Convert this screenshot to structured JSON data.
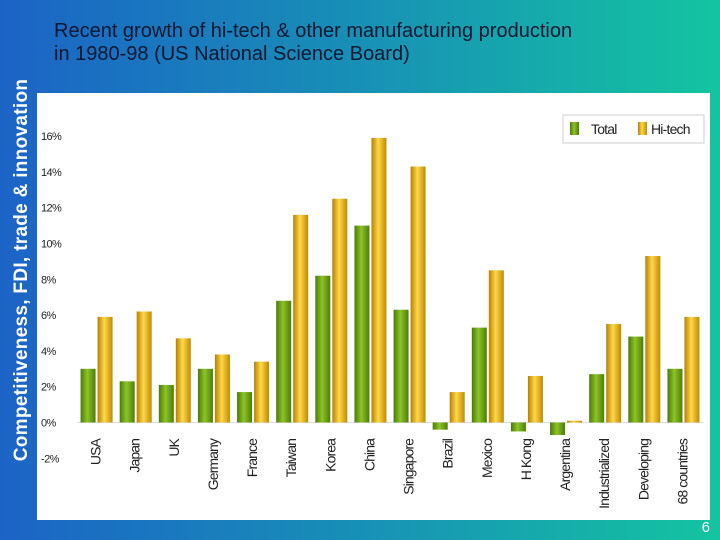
{
  "sidebar": {
    "text": "Competitiveness, FDI, trade & innovation"
  },
  "slide": {
    "title_line1": "Recent growth of hi-tech & other manufacturing production",
    "title_line2": "in 1980-98 (US National Science Board)",
    "page_number": "6"
  },
  "colors": {
    "total": "#6a9f10",
    "hitech": "#e8ab08",
    "background_from": "#1c63c6",
    "background_to": "#14c4a0"
  },
  "chart_data": {
    "type": "bar",
    "title": "",
    "xlabel": "",
    "ylabel": "",
    "ylim": [
      -2,
      16
    ],
    "yticks": [
      16,
      14,
      12,
      10,
      8,
      6,
      4,
      2,
      0,
      -2
    ],
    "ytick_labels": [
      "16%",
      "14%",
      "12%",
      "10%",
      "8%",
      "6%",
      "4%",
      "2%",
      "0%",
      "-2%"
    ],
    "legend_position": "top-right",
    "categories": [
      "USA",
      "Japan",
      "UK",
      "Germany",
      "France",
      "Taiwan",
      "Korea",
      "China",
      "Singapore",
      "Brazil",
      "Mexico",
      "H Kong",
      "Argentina",
      "Industrialized",
      "Developing",
      "68 countries"
    ],
    "series": [
      {
        "name": "Total",
        "values": [
          3.0,
          2.3,
          2.1,
          3.0,
          1.7,
          6.8,
          8.2,
          11.0,
          6.3,
          -0.4,
          5.3,
          -0.5,
          -0.7,
          2.7,
          4.8,
          3.0
        ]
      },
      {
        "name": "Hi-tech",
        "values": [
          5.9,
          6.2,
          4.7,
          3.8,
          3.4,
          11.6,
          12.5,
          15.9,
          14.3,
          1.7,
          8.5,
          2.6,
          0.1,
          5.5,
          9.3,
          5.9
        ]
      }
    ]
  }
}
